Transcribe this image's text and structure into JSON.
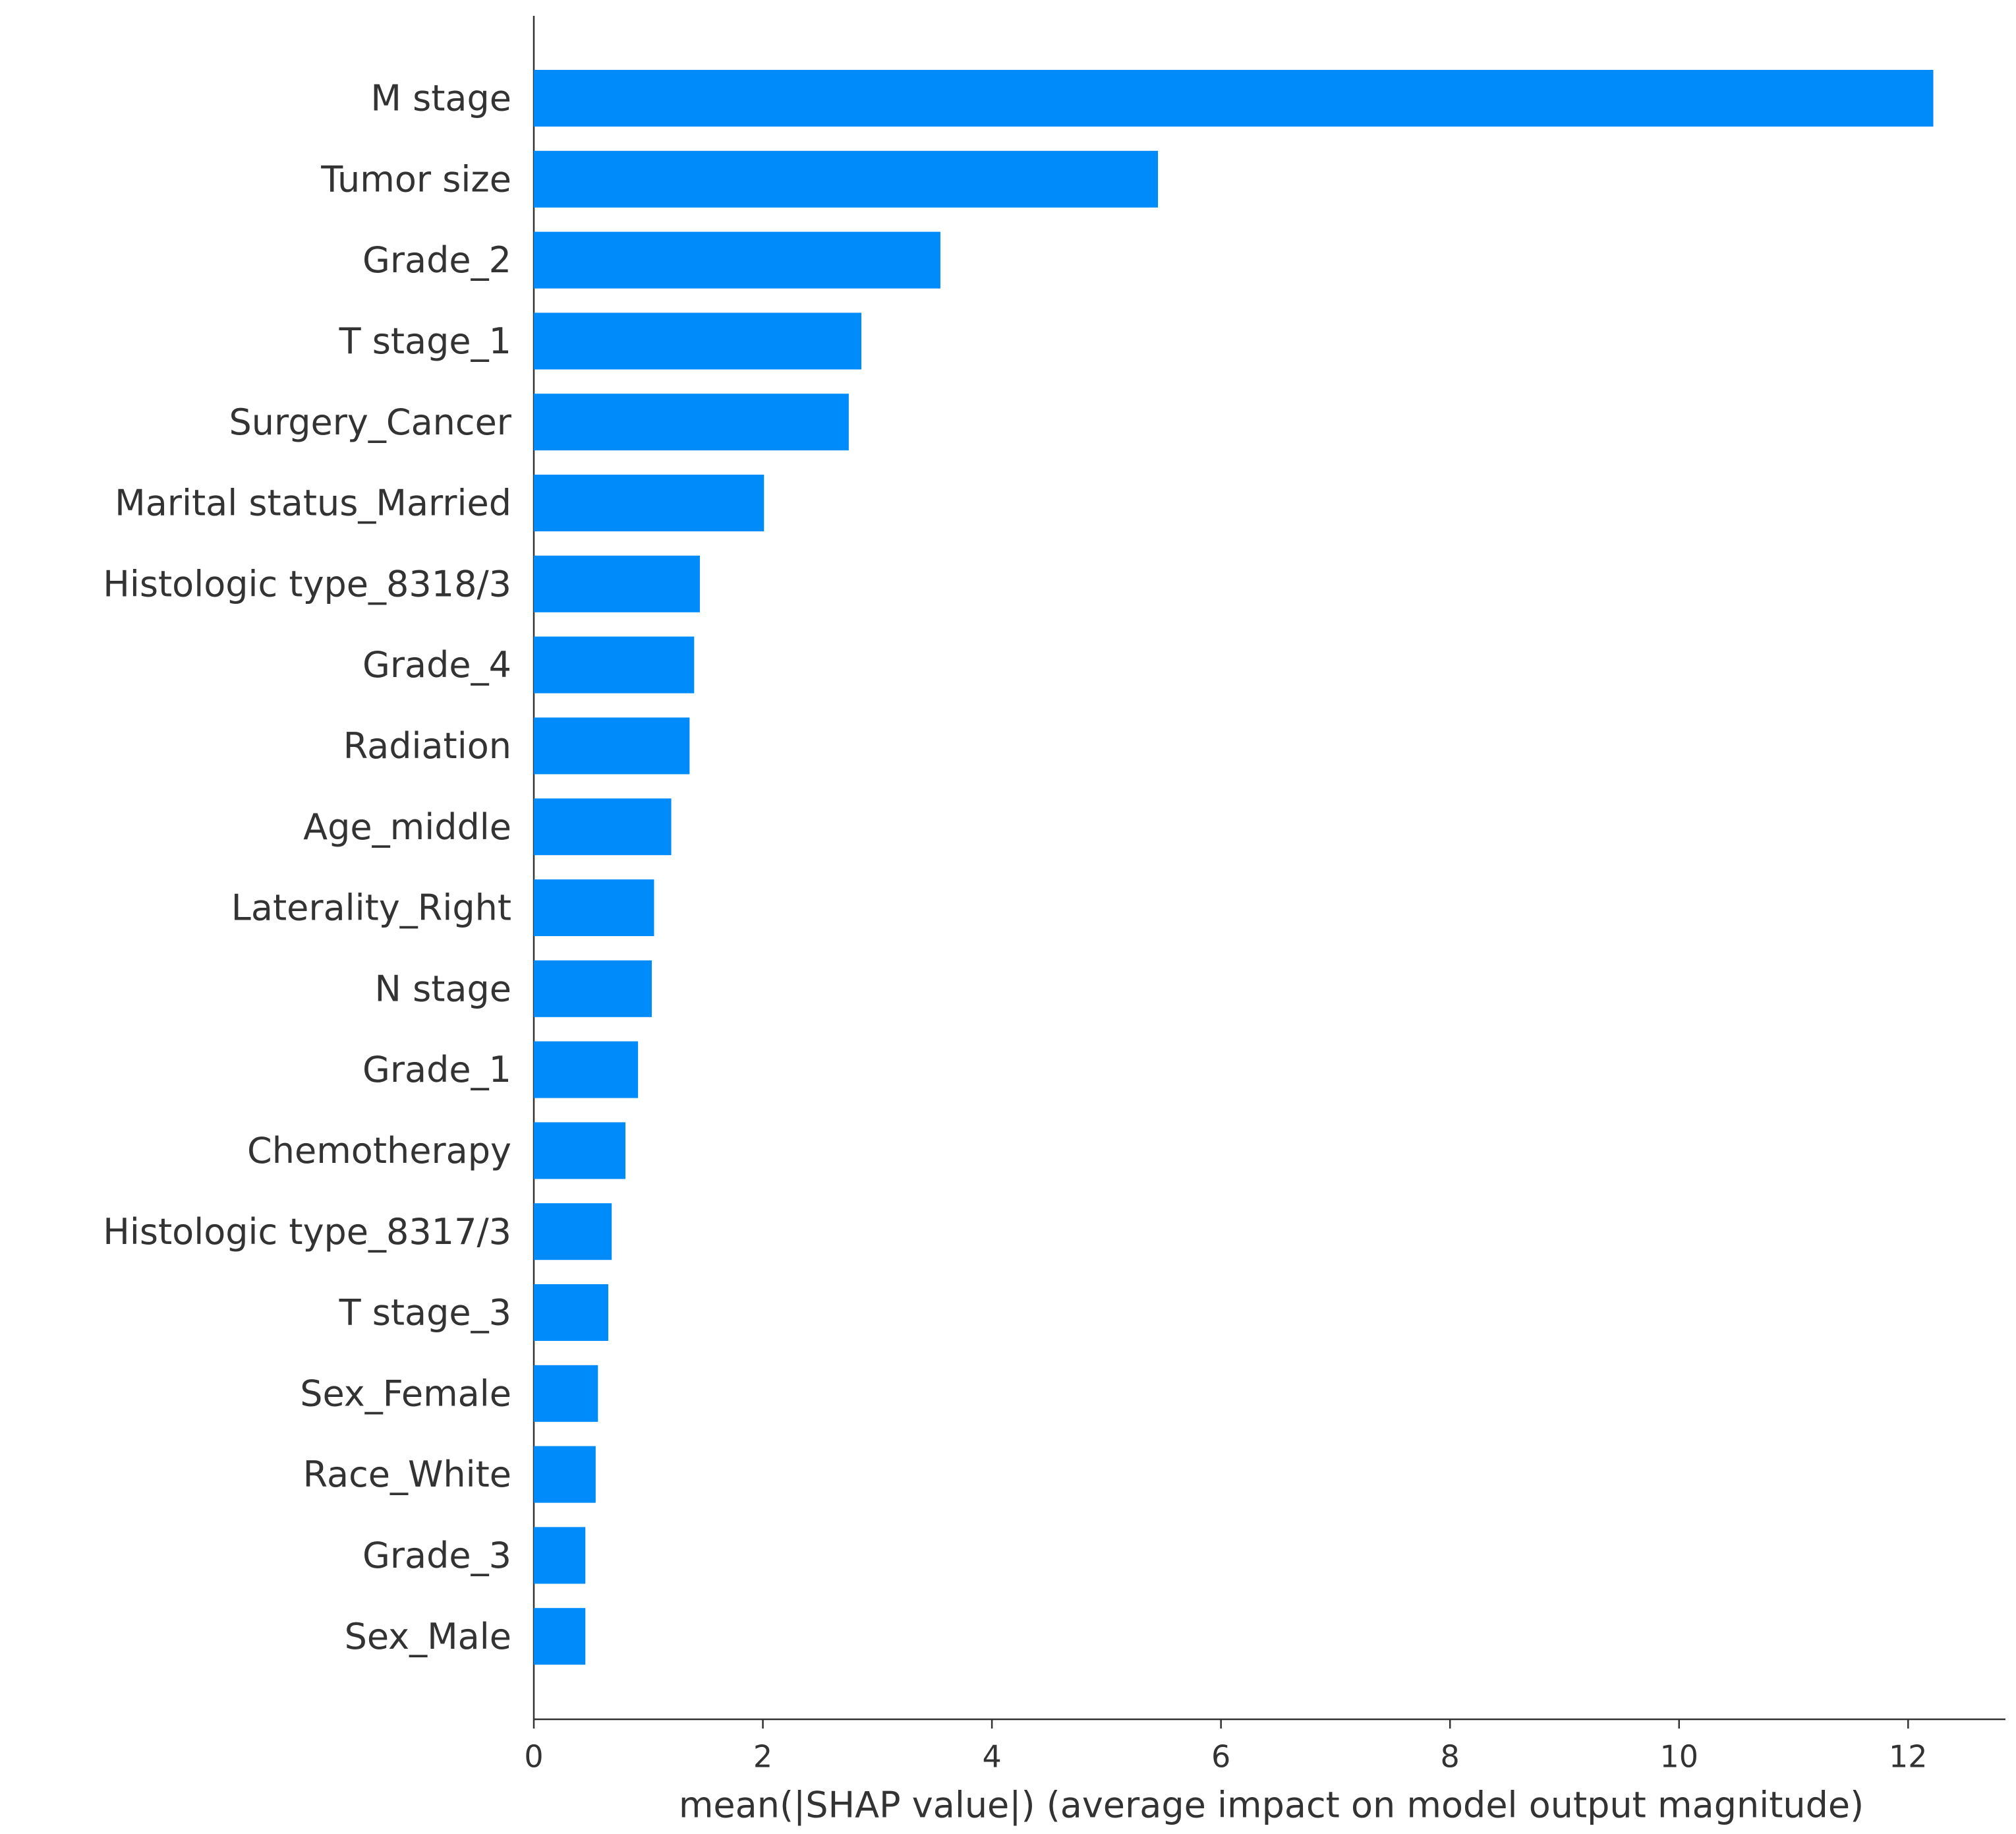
{
  "chart_data": {
    "type": "barh",
    "color": "#008bfb",
    "categories": [
      "M stage",
      "Tumor size",
      "Grade_2",
      "T stage_1",
      "Surgery_Cancer",
      "Marital status_Married",
      "Histologic type_8318/3",
      "Grade_4",
      "Radiation",
      "Age_middle",
      "Laterality_Right",
      "N stage",
      "Grade_1",
      "Chemotherapy",
      "Histologic type_8317/3",
      "T stage_3",
      "Sex_Female",
      "Race_White",
      "Grade_3",
      "Sex_Male"
    ],
    "values": [
      12.22,
      5.45,
      3.55,
      2.86,
      2.75,
      2.01,
      1.45,
      1.4,
      1.36,
      1.2,
      1.05,
      1.03,
      0.91,
      0.8,
      0.68,
      0.65,
      0.56,
      0.54,
      0.45,
      0.45
    ],
    "xlim": [
      0,
      12.85
    ],
    "xticks": [
      0,
      2,
      4,
      6,
      8,
      10,
      12
    ],
    "xlabel": "mean(|SHAP value|) (average impact on model output magnitude)"
  }
}
